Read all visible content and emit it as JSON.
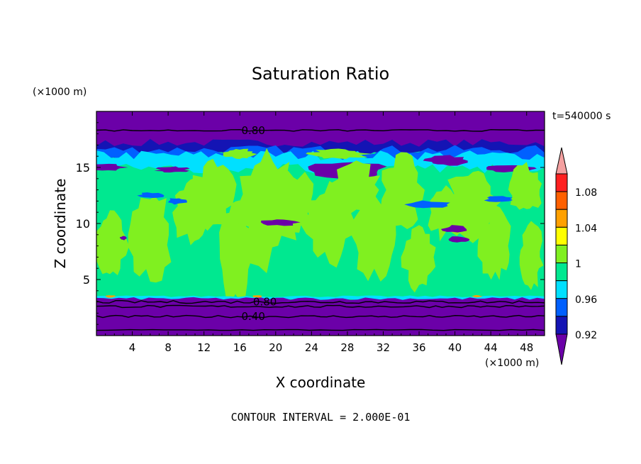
{
  "chart_data": {
    "type": "heatmap",
    "title": "Saturation Ratio",
    "xlabel": "X coordinate",
    "ylabel": "Z coordinate",
    "x_unit": "(×1000 m)",
    "y_unit": "(×1000 m)",
    "time_label": "t=540000 s",
    "footer": "CONTOUR INTERVAL = 2.000E-01",
    "xlim": [
      0,
      50
    ],
    "ylim": [
      0,
      20
    ],
    "x_ticks": [
      4,
      8,
      12,
      16,
      20,
      24,
      28,
      32,
      36,
      40,
      44,
      48
    ],
    "y_ticks": [
      5,
      10,
      15
    ],
    "contour_labels": [
      {
        "text": "0.80",
        "x": 17.5,
        "y": 18.3
      },
      {
        "text": "0.80",
        "x": 18.8,
        "y": 3.0
      },
      {
        "text": "0.40",
        "x": 17.5,
        "y": 1.7
      }
    ],
    "colorbar": {
      "labels": [
        "1.08",
        "1.04",
        "1",
        "0.96",
        "0.92"
      ],
      "colors": [
        "#6b00a8",
        "#1414b4",
        "#0060ff",
        "#00e0ff",
        "#00e890",
        "#80f020",
        "#ffff00",
        "#ffa000",
        "#ff6000",
        "#ff2020",
        "#f4a0a0"
      ]
    }
  }
}
